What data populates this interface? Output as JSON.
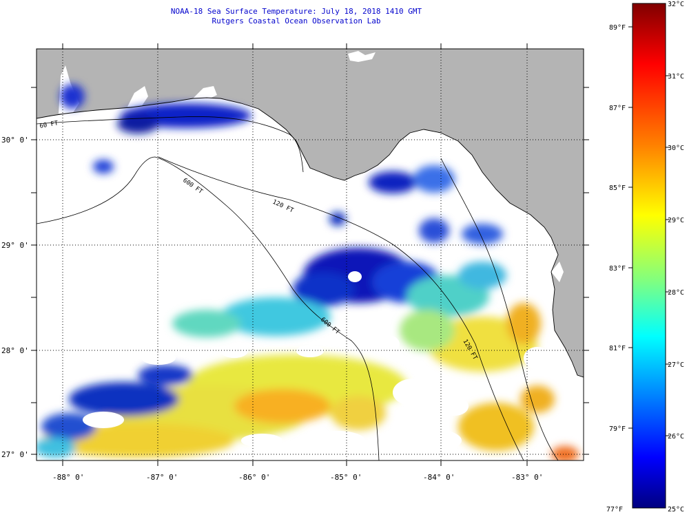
{
  "header": {
    "title": "NOAA-18 Sea Surface Temperature:  July 18, 2018 1410 GMT",
    "subtitle": "Rutgers Coastal Ocean Observation Lab"
  },
  "map": {
    "lon_labels": [
      "-88° 0'",
      "-87° 0'",
      "-86° 0'",
      "-85° 0'",
      "-84° 0'",
      "-83° 0'"
    ],
    "lat_labels": [
      "30° 0'",
      "29° 0'",
      "28° 0'",
      "27° 0'"
    ],
    "contour_labels": [
      "60 FT",
      "120 FT",
      "600 FT",
      "600 FT",
      "120 FT"
    ],
    "land_color": "#b4b4b4",
    "water_no_data_color": "#ffffff"
  },
  "colorbar": {
    "celsius_labels": [
      "32°C",
      "31°C",
      "30°C",
      "29°C",
      "28°C",
      "27°C",
      "26°C",
      "25°C"
    ],
    "fahrenheit_labels": [
      "89°F",
      "87°F",
      "85°F",
      "83°F",
      "81°F",
      "79°F",
      "77°F"
    ],
    "colors": [
      "#800000",
      "#ff0000",
      "#ff8000",
      "#ffff00",
      "#80ff80",
      "#00ffff",
      "#0080ff",
      "#0000ff",
      "#000080"
    ]
  }
}
